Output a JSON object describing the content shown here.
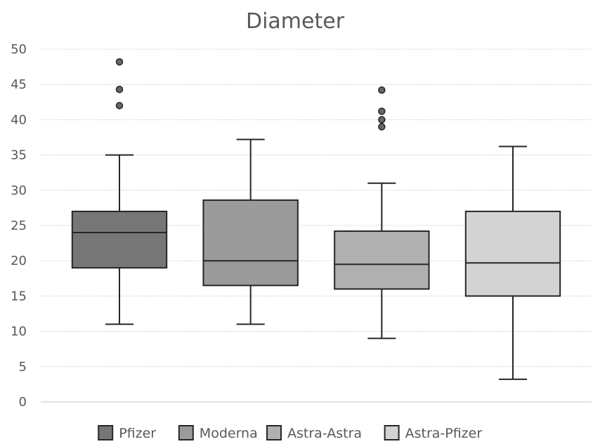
{
  "chart_data": {
    "type": "box",
    "title": "Diameter",
    "xlabel": "",
    "ylabel": "",
    "ylim": [
      0,
      50
    ],
    "yticks": [
      0,
      5,
      10,
      15,
      20,
      25,
      30,
      35,
      40,
      45,
      50
    ],
    "grid": true,
    "legend_position": "bottom",
    "series": [
      {
        "name": "Pfizer",
        "color": "#767676",
        "min": 11,
        "q1": 19,
        "median": 24,
        "q3": 27,
        "max": 35,
        "outliers": [
          42,
          44.3,
          48.2
        ]
      },
      {
        "name": "Moderna",
        "color": "#9b9b9b",
        "min": 11,
        "q1": 16.5,
        "median": 20,
        "q3": 28.6,
        "max": 37.2,
        "outliers": []
      },
      {
        "name": "Astra-Astra",
        "color": "#b0b0b0",
        "min": 9,
        "q1": 16,
        "median": 19.5,
        "q3": 24.2,
        "max": 31,
        "outliers": [
          39,
          40,
          41.2,
          44.2
        ]
      },
      {
        "name": "Astra-Pfizer",
        "color": "#d3d3d3",
        "min": 3.2,
        "q1": 15,
        "median": 19.7,
        "q3": 27,
        "max": 36.2,
        "outliers": []
      }
    ]
  }
}
